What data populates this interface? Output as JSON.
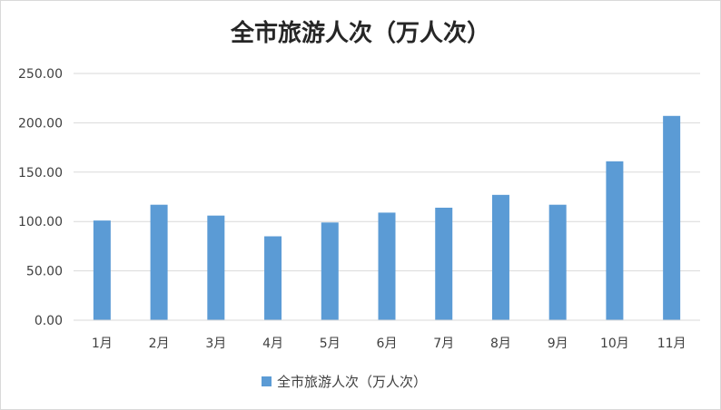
{
  "chart_data": {
    "type": "bar",
    "title": "全市旅游人次（万人次）",
    "xlabel": "",
    "ylabel": "",
    "categories": [
      "1月",
      "2月",
      "3月",
      "4月",
      "5月",
      "6月",
      "7月",
      "8月",
      "9月",
      "10月",
      "11月"
    ],
    "series": [
      {
        "name": "全市旅游人次（万人次）",
        "color": "#5b9bd5",
        "values": [
          101,
          117,
          106,
          85,
          99,
          109,
          114,
          127,
          117,
          161,
          207
        ]
      }
    ],
    "ylim": [
      0,
      250
    ],
    "yticks": [
      "0.00",
      "50.00",
      "100.00",
      "150.00",
      "200.00",
      "250.00"
    ],
    "grid": true,
    "legend_position": "bottom"
  }
}
